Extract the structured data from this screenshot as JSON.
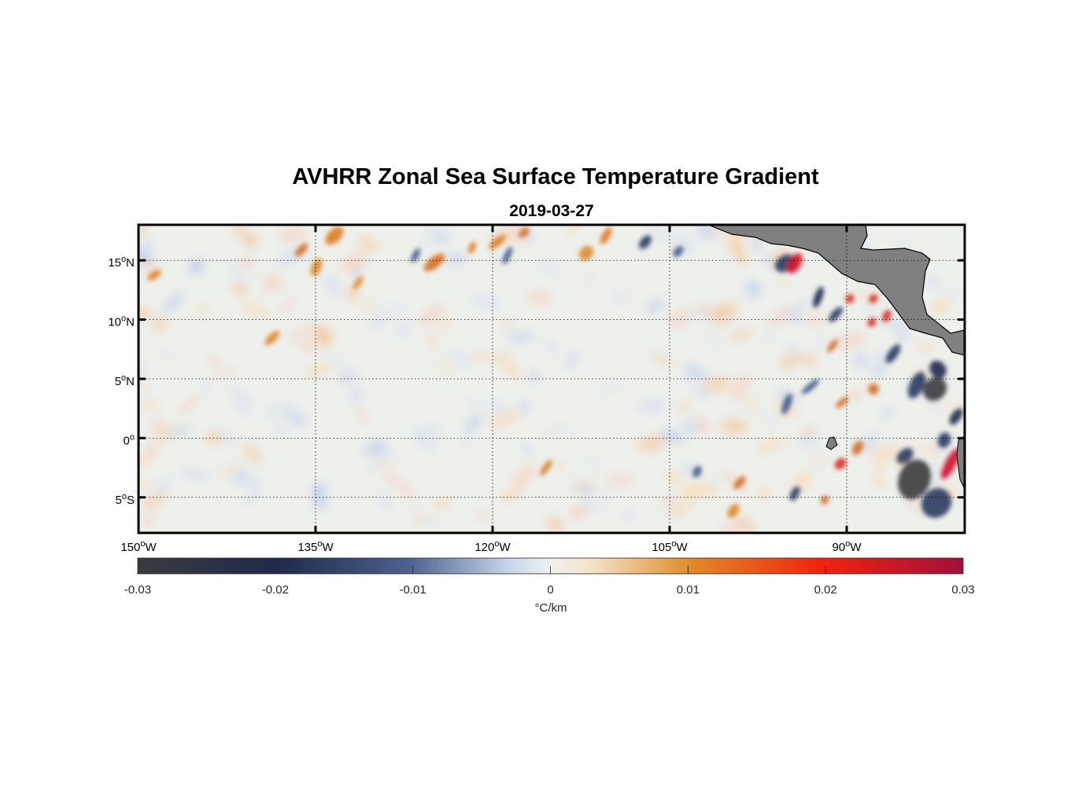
{
  "title": "AVHRR Zonal Sea Surface Temperature Gradient",
  "subtitle": "2019-03-27",
  "map": {
    "lon_range": [
      -150,
      -80
    ],
    "lat_range": [
      -8,
      18
    ],
    "lon_ticks": [
      {
        "value": -150,
        "num": "150",
        "sup": "o",
        "hemi": "W"
      },
      {
        "value": -135,
        "num": "135",
        "sup": "o",
        "hemi": "W"
      },
      {
        "value": -120,
        "num": "120",
        "sup": "o",
        "hemi": "W"
      },
      {
        "value": -105,
        "num": "105",
        "sup": "o",
        "hemi": "W"
      },
      {
        "value": -90,
        "num": "90",
        "sup": "o",
        "hemi": "W"
      }
    ],
    "lat_ticks": [
      {
        "value": 15,
        "num": "15",
        "sup": "o",
        "hemi": "N"
      },
      {
        "value": 10,
        "num": "10",
        "sup": "o",
        "hemi": "N"
      },
      {
        "value": 5,
        "num": "5",
        "sup": "o",
        "hemi": "N"
      },
      {
        "value": 0,
        "num": "0",
        "sup": "o",
        "hemi": ""
      },
      {
        "value": -5,
        "num": "5",
        "sup": "o",
        "hemi": "S"
      }
    ],
    "land_color": "#808080"
  },
  "colorbar": {
    "range": [
      -0.03,
      0.03
    ],
    "ticks": [
      "-0.03",
      "-0.02",
      "-0.01",
      "0",
      "0.01",
      "0.02",
      "0.03"
    ],
    "tick_values": [
      -0.03,
      -0.02,
      -0.01,
      0,
      0.01,
      0.02,
      0.03
    ],
    "label": "°C/km",
    "colors": [
      "#3a3a3f",
      "#1f2a4a",
      "#4c6290",
      "#c8d6ea",
      "#eef1ee",
      "#f6e3c6",
      "#e08a2a",
      "#f2220e",
      "#a0103a"
    ]
  }
}
